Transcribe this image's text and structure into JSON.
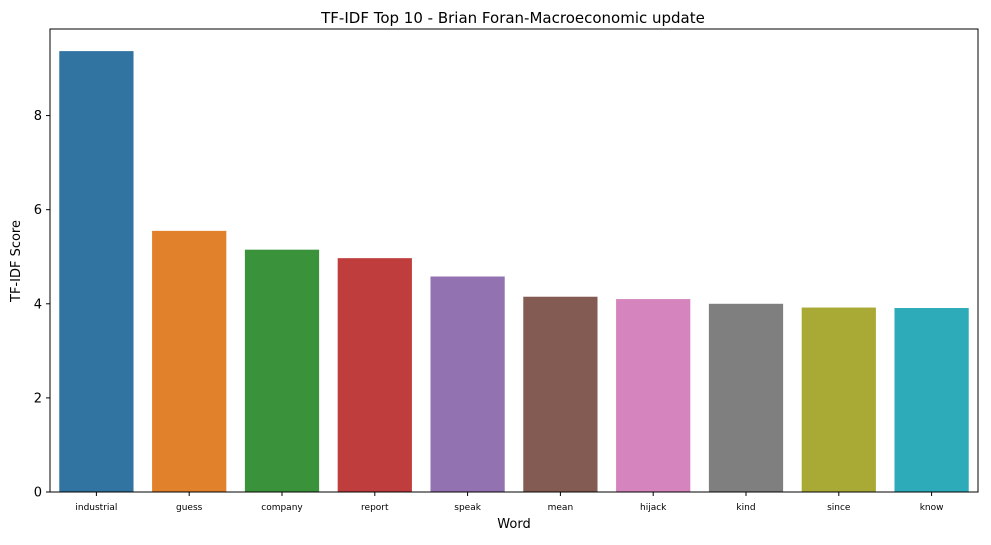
{
  "chart_data": {
    "type": "bar",
    "title": "TF-IDF Top 10 - Brian Foran-Macroeconomic update",
    "xlabel": "Word",
    "ylabel": "TF-IDF Score",
    "categories": [
      "industrial",
      "guess",
      "company",
      "report",
      "speak",
      "mean",
      "hijack",
      "kind",
      "since",
      "know"
    ],
    "values": [
      9.37,
      5.55,
      5.15,
      4.97,
      4.58,
      4.15,
      4.1,
      4.0,
      3.92,
      3.91
    ],
    "colors": [
      "#3274a1",
      "#e1812c",
      "#3a923a",
      "#c03d3e",
      "#9372b2",
      "#845b53",
      "#d684bd",
      "#7f7f7f",
      "#a9aa35",
      "#2eabb8"
    ],
    "ylim": [
      0,
      9.84
    ],
    "yticks": [
      0,
      2,
      4,
      6,
      8
    ],
    "grid": false,
    "legend": "none"
  }
}
